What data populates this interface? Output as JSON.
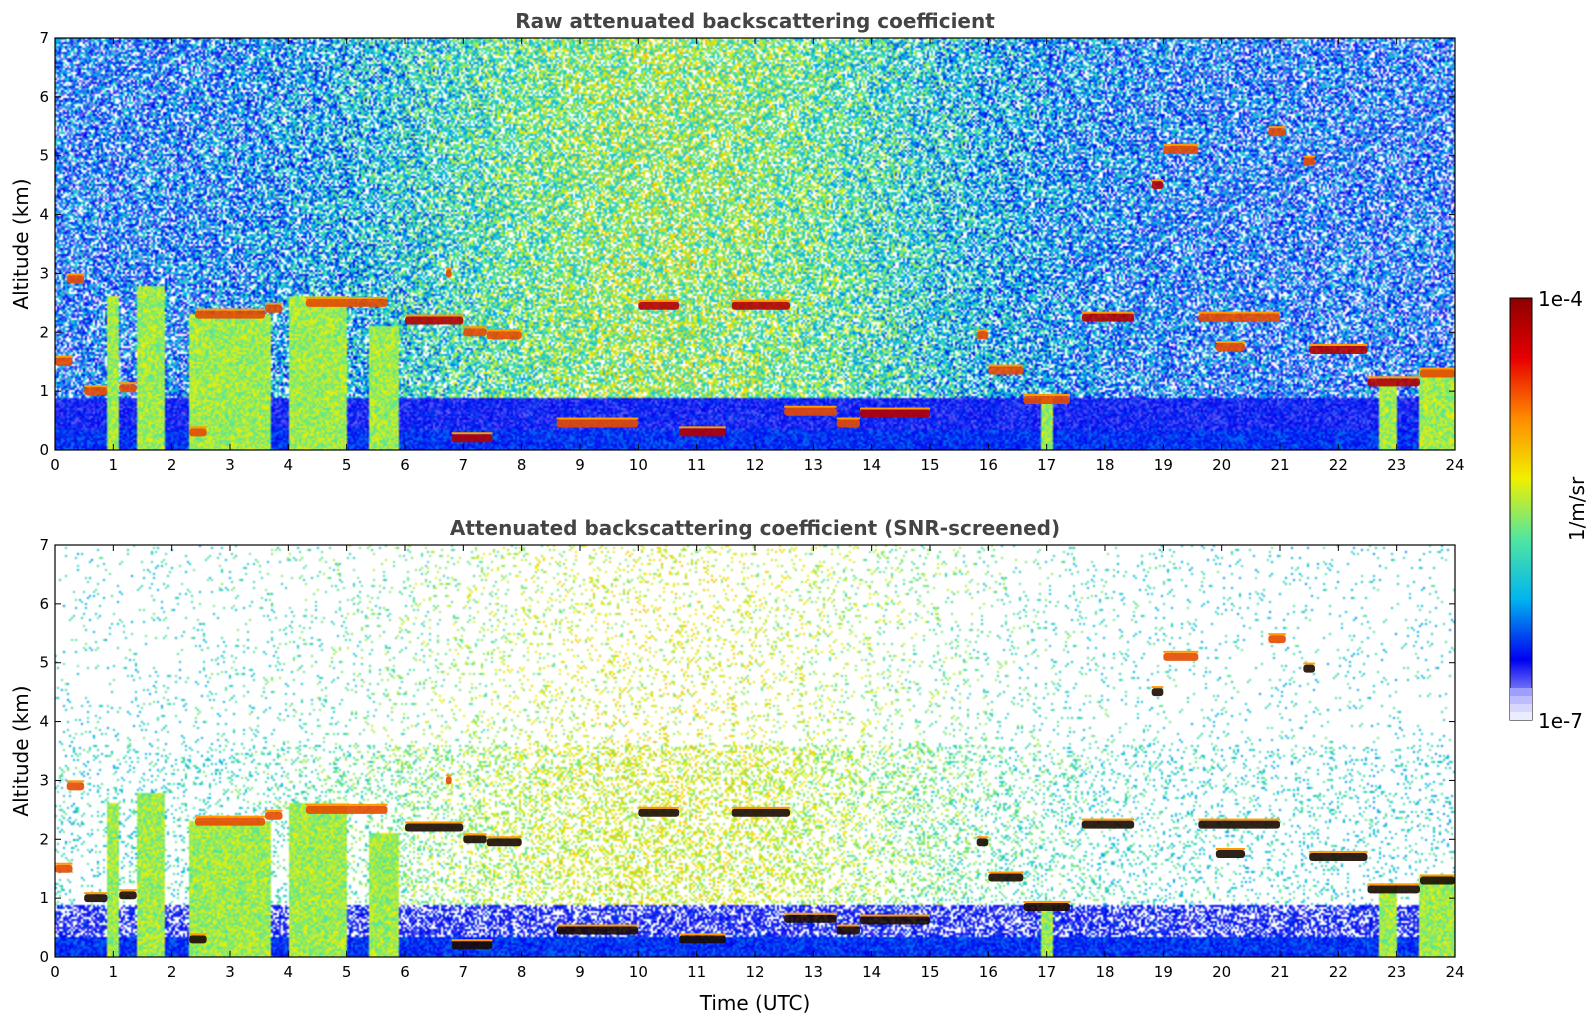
{
  "colorbar": {
    "label": "1/m/sr",
    "max_label": "1e-4",
    "min_label": "1e-7",
    "range": [
      1e-07,
      0.0001
    ],
    "scale": "log",
    "colors": [
      "#e8e8ff",
      "#0000f0",
      "#00b4f0",
      "#50e6a0",
      "#f0f000",
      "#ff8c00",
      "#e60000",
      "#8c0000"
    ]
  },
  "chart_data": [
    {
      "type": "heatmap",
      "title": "Raw attenuated backscattering coefficient",
      "xlabel": "",
      "ylabel": "Altitude (km)",
      "xlim": [
        0,
        24
      ],
      "ylim": [
        0,
        7
      ],
      "xticks": [
        0,
        1,
        2,
        3,
        4,
        5,
        6,
        7,
        8,
        9,
        10,
        11,
        12,
        13,
        14,
        15,
        16,
        17,
        18,
        19,
        20,
        21,
        22,
        23,
        24
      ],
      "yticks": [
        0,
        1,
        2,
        3,
        4,
        5,
        6,
        7
      ],
      "grid": false,
      "screened": false,
      "layers": [
        {
          "t0": 0.0,
          "t1": 0.3,
          "alt": 1.5,
          "level": 6
        },
        {
          "t0": 0.2,
          "t1": 0.5,
          "alt": 2.9,
          "level": 6
        },
        {
          "t0": 0.5,
          "t1": 0.9,
          "alt": 1.0,
          "level": 6
        },
        {
          "t0": 1.1,
          "t1": 1.4,
          "alt": 1.05,
          "level": 6
        },
        {
          "t0": 2.3,
          "t1": 2.6,
          "alt": 0.3,
          "level": 6
        },
        {
          "t0": 2.4,
          "t1": 3.6,
          "alt": 2.3,
          "level": 6
        },
        {
          "t0": 3.6,
          "t1": 3.9,
          "alt": 2.4,
          "level": 6
        },
        {
          "t0": 4.3,
          "t1": 5.7,
          "alt": 2.5,
          "level": 6
        },
        {
          "t0": 6.0,
          "t1": 7.0,
          "alt": 2.2,
          "level": 7
        },
        {
          "t0": 7.0,
          "t1": 7.4,
          "alt": 2.0,
          "level": 6
        },
        {
          "t0": 7.4,
          "t1": 8.0,
          "alt": 1.95,
          "level": 6
        },
        {
          "t0": 6.7,
          "t1": 6.8,
          "alt": 3.0,
          "level": 6
        },
        {
          "t0": 6.8,
          "t1": 7.5,
          "alt": 0.2,
          "level": 7
        },
        {
          "t0": 8.6,
          "t1": 10.0,
          "alt": 0.45,
          "level": 6
        },
        {
          "t0": 10.0,
          "t1": 10.7,
          "alt": 2.45,
          "level": 7
        },
        {
          "t0": 10.7,
          "t1": 11.5,
          "alt": 0.3,
          "level": 7
        },
        {
          "t0": 11.6,
          "t1": 12.6,
          "alt": 2.45,
          "level": 7
        },
        {
          "t0": 12.5,
          "t1": 13.4,
          "alt": 0.65,
          "level": 6
        },
        {
          "t0": 13.4,
          "t1": 13.8,
          "alt": 0.45,
          "level": 6
        },
        {
          "t0": 13.8,
          "t1": 15.0,
          "alt": 0.62,
          "level": 7
        },
        {
          "t0": 15.8,
          "t1": 16.0,
          "alt": 1.95,
          "level": 6
        },
        {
          "t0": 16.0,
          "t1": 16.6,
          "alt": 1.35,
          "level": 6
        },
        {
          "t0": 16.6,
          "t1": 17.4,
          "alt": 0.85,
          "level": 6
        },
        {
          "t0": 17.6,
          "t1": 18.5,
          "alt": 2.25,
          "level": 7
        },
        {
          "t0": 18.8,
          "t1": 19.0,
          "alt": 4.5,
          "level": 7
        },
        {
          "t0": 19.0,
          "t1": 19.6,
          "alt": 5.1,
          "level": 6
        },
        {
          "t0": 19.6,
          "t1": 21.0,
          "alt": 2.25,
          "level": 6
        },
        {
          "t0": 19.9,
          "t1": 20.4,
          "alt": 1.75,
          "level": 6
        },
        {
          "t0": 20.8,
          "t1": 21.1,
          "alt": 5.4,
          "level": 6
        },
        {
          "t0": 21.4,
          "t1": 21.6,
          "alt": 4.9,
          "level": 6
        },
        {
          "t0": 21.5,
          "t1": 22.5,
          "alt": 1.7,
          "level": 7
        },
        {
          "t0": 22.5,
          "t1": 23.4,
          "alt": 1.15,
          "level": 7
        },
        {
          "t0": 23.4,
          "t1": 24.0,
          "alt": 1.3,
          "level": 6
        }
      ],
      "columns": [
        {
          "t0": 0.9,
          "t1": 1.1,
          "top": 2.6
        },
        {
          "t0": 1.4,
          "t1": 1.9,
          "top": 2.8
        },
        {
          "t0": 2.3,
          "t1": 3.7,
          "top": 2.3
        },
        {
          "t0": 4.0,
          "t1": 5.0,
          "top": 2.6
        },
        {
          "t0": 5.4,
          "t1": 5.9,
          "top": 2.1
        },
        {
          "t0": 16.9,
          "t1": 17.1,
          "top": 0.9
        },
        {
          "t0": 22.7,
          "t1": 23.0,
          "top": 1.2
        },
        {
          "t0": 23.4,
          "t1": 24.0,
          "top": 1.4
        }
      ]
    },
    {
      "type": "heatmap",
      "title": "Attenuated backscattering coefficient (SNR-screened)",
      "xlabel": "Time (UTC)",
      "ylabel": "Altitude (km)",
      "xlim": [
        0,
        24
      ],
      "ylim": [
        0,
        7
      ],
      "xticks": [
        0,
        1,
        2,
        3,
        4,
        5,
        6,
        7,
        8,
        9,
        10,
        11,
        12,
        13,
        14,
        15,
        16,
        17,
        18,
        19,
        20,
        21,
        22,
        23,
        24
      ],
      "yticks": [
        0,
        1,
        2,
        3,
        4,
        5,
        6,
        7
      ],
      "grid": false,
      "screened": true,
      "layers": [
        {
          "t0": 0.0,
          "t1": 0.3,
          "alt": 1.5,
          "level": 6
        },
        {
          "t0": 0.2,
          "t1": 0.5,
          "alt": 2.9,
          "level": 6
        },
        {
          "t0": 0.5,
          "t1": 0.9,
          "alt": 1.0,
          "level": 8
        },
        {
          "t0": 1.1,
          "t1": 1.4,
          "alt": 1.05,
          "level": 8
        },
        {
          "t0": 2.3,
          "t1": 2.6,
          "alt": 0.3,
          "level": 8
        },
        {
          "t0": 2.4,
          "t1": 3.6,
          "alt": 2.3,
          "level": 6
        },
        {
          "t0": 3.6,
          "t1": 3.9,
          "alt": 2.4,
          "level": 6
        },
        {
          "t0": 4.3,
          "t1": 5.7,
          "alt": 2.5,
          "level": 6
        },
        {
          "t0": 6.0,
          "t1": 7.0,
          "alt": 2.2,
          "level": 8
        },
        {
          "t0": 7.0,
          "t1": 7.4,
          "alt": 2.0,
          "level": 8
        },
        {
          "t0": 7.4,
          "t1": 8.0,
          "alt": 1.95,
          "level": 8
        },
        {
          "t0": 6.7,
          "t1": 6.8,
          "alt": 3.0,
          "level": 6
        },
        {
          "t0": 6.8,
          "t1": 7.5,
          "alt": 0.2,
          "level": 8
        },
        {
          "t0": 8.6,
          "t1": 10.0,
          "alt": 0.45,
          "level": 8
        },
        {
          "t0": 10.0,
          "t1": 10.7,
          "alt": 2.45,
          "level": 8
        },
        {
          "t0": 10.7,
          "t1": 11.5,
          "alt": 0.3,
          "level": 8
        },
        {
          "t0": 11.6,
          "t1": 12.6,
          "alt": 2.45,
          "level": 8
        },
        {
          "t0": 12.5,
          "t1": 13.4,
          "alt": 0.65,
          "level": 8
        },
        {
          "t0": 13.4,
          "t1": 13.8,
          "alt": 0.45,
          "level": 8
        },
        {
          "t0": 13.8,
          "t1": 15.0,
          "alt": 0.62,
          "level": 8
        },
        {
          "t0": 15.8,
          "t1": 16.0,
          "alt": 1.95,
          "level": 8
        },
        {
          "t0": 16.0,
          "t1": 16.6,
          "alt": 1.35,
          "level": 8
        },
        {
          "t0": 16.6,
          "t1": 17.4,
          "alt": 0.85,
          "level": 8
        },
        {
          "t0": 17.6,
          "t1": 18.5,
          "alt": 2.25,
          "level": 8
        },
        {
          "t0": 18.8,
          "t1": 19.0,
          "alt": 4.5,
          "level": 8
        },
        {
          "t0": 19.0,
          "t1": 19.6,
          "alt": 5.1,
          "level": 6
        },
        {
          "t0": 19.6,
          "t1": 21.0,
          "alt": 2.25,
          "level": 8
        },
        {
          "t0": 19.9,
          "t1": 20.4,
          "alt": 1.75,
          "level": 8
        },
        {
          "t0": 20.8,
          "t1": 21.1,
          "alt": 5.4,
          "level": 6
        },
        {
          "t0": 21.4,
          "t1": 21.6,
          "alt": 4.9,
          "level": 8
        },
        {
          "t0": 21.5,
          "t1": 22.5,
          "alt": 1.7,
          "level": 8
        },
        {
          "t0": 22.5,
          "t1": 23.4,
          "alt": 1.15,
          "level": 8
        },
        {
          "t0": 23.4,
          "t1": 24.0,
          "alt": 1.3,
          "level": 8
        }
      ],
      "columns": [
        {
          "t0": 0.9,
          "t1": 1.1,
          "top": 2.6
        },
        {
          "t0": 1.4,
          "t1": 1.9,
          "top": 2.8
        },
        {
          "t0": 2.3,
          "t1": 3.7,
          "top": 2.3
        },
        {
          "t0": 4.0,
          "t1": 5.0,
          "top": 2.6
        },
        {
          "t0": 5.4,
          "t1": 5.9,
          "top": 2.1
        },
        {
          "t0": 16.9,
          "t1": 17.1,
          "top": 0.9
        },
        {
          "t0": 22.7,
          "t1": 23.0,
          "top": 1.2
        },
        {
          "t0": 23.4,
          "t1": 24.0,
          "top": 1.4
        }
      ]
    }
  ]
}
